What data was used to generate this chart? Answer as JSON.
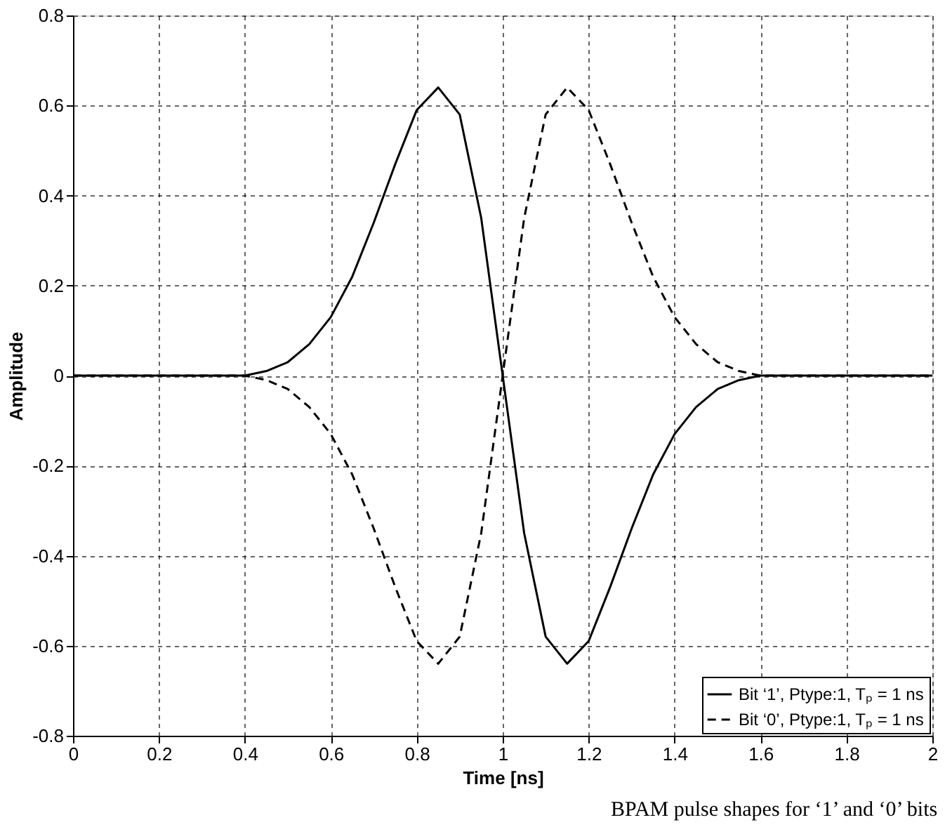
{
  "chart_data": {
    "type": "line",
    "xlabel": "Time [ns]",
    "ylabel": "Amplitude",
    "annotations": [
      "BPAM pulse shapes for ‘1’ and ‘0’ bits"
    ],
    "x": [
      0,
      0.05,
      0.1,
      0.15,
      0.2,
      0.25,
      0.3,
      0.35,
      0.4,
      0.45,
      0.5,
      0.55,
      0.6,
      0.65,
      0.7,
      0.75,
      0.8,
      0.85,
      0.9,
      0.95,
      1.0,
      1.05,
      1.1,
      1.15,
      1.2,
      1.25,
      1.3,
      1.35,
      1.4,
      1.45,
      1.5,
      1.55,
      1.6,
      1.65,
      1.7,
      1.75,
      1.8,
      1.85,
      1.9,
      1.95,
      2.0
    ],
    "series": [
      {
        "name": "Bit ‘1’, Ptype:1, Tₚ = 1 ns",
        "color": "#000000",
        "line_style": "solid",
        "values": [
          0,
          0,
          0,
          0,
          0,
          0,
          0,
          0,
          0,
          0.01,
          0.03,
          0.07,
          0.13,
          0.22,
          0.34,
          0.47,
          0.59,
          0.64,
          0.58,
          0.35,
          0,
          -0.35,
          -0.58,
          -0.64,
          -0.59,
          -0.47,
          -0.34,
          -0.22,
          -0.13,
          -0.07,
          -0.03,
          -0.01,
          0,
          0,
          0,
          0,
          0,
          0,
          0,
          0,
          0
        ]
      },
      {
        "name": "Bit ‘0’, Ptype:1, Tₚ = 1 ns",
        "color": "#000000",
        "line_style": "dashed",
        "values": [
          0,
          0,
          0,
          0,
          0,
          0,
          0,
          0,
          0,
          -0.01,
          -0.03,
          -0.07,
          -0.13,
          -0.22,
          -0.34,
          -0.47,
          -0.59,
          -0.64,
          -0.58,
          -0.35,
          0,
          0.35,
          0.58,
          0.64,
          0.59,
          0.47,
          0.34,
          0.22,
          0.13,
          0.07,
          0.03,
          0.01,
          0,
          0,
          0,
          0,
          0,
          0,
          0,
          0,
          0
        ]
      }
    ],
    "xlim": [
      0,
      2
    ],
    "xticks": [
      0,
      0.2,
      0.4,
      0.6,
      0.8,
      1,
      1.2,
      1.4,
      1.6,
      1.8,
      2
    ],
    "ylim": [
      -0.8,
      0.8
    ],
    "yticks": [
      -0.8,
      -0.6,
      -0.4,
      -0.2,
      0,
      0.2,
      0.4,
      0.6,
      0.8
    ],
    "grid": true,
    "legend": "bottom right",
    "marker": "none"
  }
}
